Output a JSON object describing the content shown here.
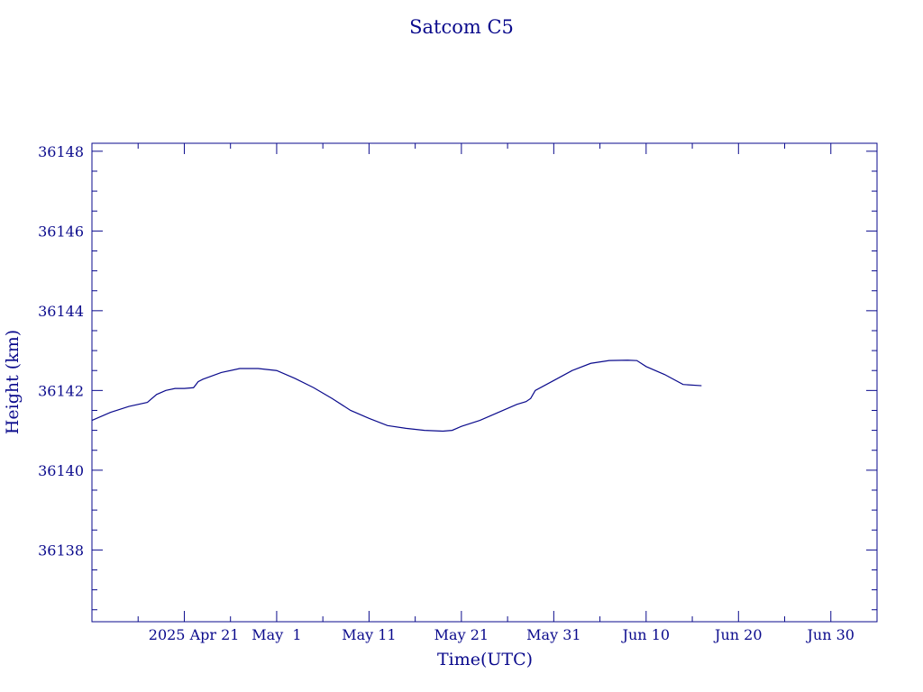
{
  "chart_data": {
    "type": "line",
    "title": "Satcom C5",
    "xlabel": "Time(UTC)",
    "ylabel": "Height (km)",
    "color": "#0a0a8c",
    "xlim": [
      "2025-04-11",
      "2025-07-05"
    ],
    "ylim": [
      36136.2,
      36148.2
    ],
    "x_ticks": [
      {
        "date": "2025-04-21",
        "label": "2025 Apr 21"
      },
      {
        "date": "2025-05-01",
        "label": "May  1"
      },
      {
        "date": "2025-05-11",
        "label": "May 11"
      },
      {
        "date": "2025-05-21",
        "label": "May 21"
      },
      {
        "date": "2025-05-31",
        "label": "May 31"
      },
      {
        "date": "2025-06-10",
        "label": "Jun 10"
      },
      {
        "date": "2025-06-20",
        "label": "Jun 20"
      },
      {
        "date": "2025-06-30",
        "label": "Jun 30"
      }
    ],
    "y_ticks": [
      36138,
      36140,
      36142,
      36144,
      36146,
      36148
    ],
    "series": [
      {
        "x": [
          "2025-04-11",
          "2025-04-13",
          "2025-04-15",
          "2025-04-17",
          "2025-04-18",
          "2025-04-19",
          "2025-04-20",
          "2025-04-21",
          "2025-04-22",
          "2025-04-22T12:00",
          "2025-04-23",
          "2025-04-25",
          "2025-04-27",
          "2025-04-29",
          "2025-05-01",
          "2025-05-03",
          "2025-05-05",
          "2025-05-07",
          "2025-05-09",
          "2025-05-11",
          "2025-05-13",
          "2025-05-15",
          "2025-05-17",
          "2025-05-19",
          "2025-05-20",
          "2025-05-20T12:00",
          "2025-05-21",
          "2025-05-23",
          "2025-05-25",
          "2025-05-27",
          "2025-05-28",
          "2025-05-28T12:00",
          "2025-05-29",
          "2025-05-31",
          "2025-06-02",
          "2025-06-04",
          "2025-06-06",
          "2025-06-08",
          "2025-06-09",
          "2025-06-10",
          "2025-06-12",
          "2025-06-14",
          "2025-06-16"
        ],
        "y": [
          36141.25,
          36141.45,
          36141.6,
          36141.7,
          36141.9,
          36142.0,
          36142.05,
          36142.05,
          36142.07,
          36142.22,
          36142.28,
          36142.45,
          36142.55,
          36142.55,
          36142.5,
          36142.3,
          36142.07,
          36141.8,
          36141.5,
          36141.3,
          36141.12,
          36141.05,
          36141.0,
          36140.98,
          36141.0,
          36141.05,
          36141.1,
          36141.25,
          36141.45,
          36141.65,
          36141.72,
          36141.8,
          36142.0,
          36142.25,
          36142.5,
          36142.68,
          36142.75,
          36142.76,
          36142.75,
          36142.6,
          36142.4,
          36142.15,
          36142.12
        ]
      }
    ]
  }
}
